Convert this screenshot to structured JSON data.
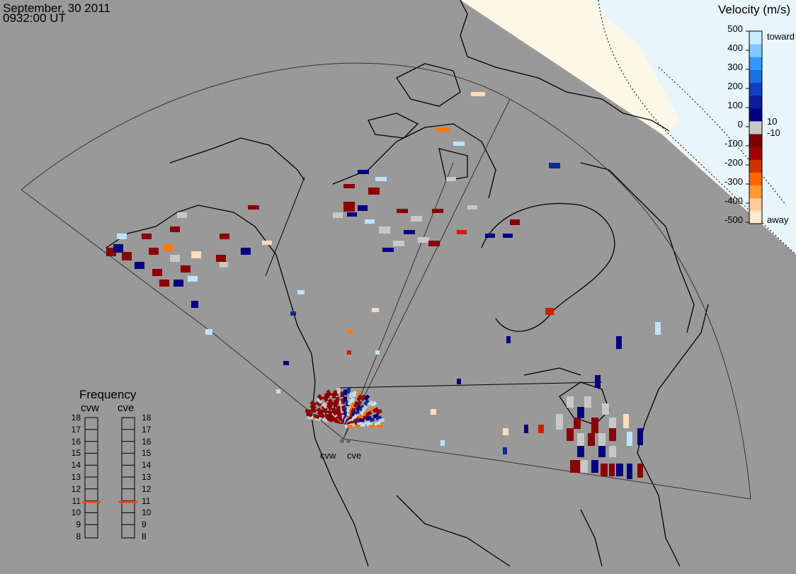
{
  "timestamp": {
    "date": "September, 30 2011",
    "time": "0932:00 UT"
  },
  "velocity_legend": {
    "title": "Velocity (m/s)",
    "ticks": [
      "500",
      "400",
      "300",
      "200",
      "100",
      "0",
      "-100",
      "-200",
      "-300",
      "-400",
      "-500"
    ],
    "inner_labels": [
      "10",
      "-10"
    ],
    "toward_label": "toward",
    "away_label": "away",
    "colors": [
      "#ffe8cc",
      "#ffcc99",
      "#ff9933",
      "#ff6600",
      "#cc3300",
      "#a00000",
      "#800000",
      "#c8c8c8",
      "#000080",
      "#0a1f99",
      "#1040c0",
      "#1a6fe0",
      "#3399ff",
      "#80c8ff",
      "#c8ecff"
    ]
  },
  "frequency_legend": {
    "title": "Frequency",
    "radars": [
      "cvw",
      "cve"
    ],
    "levels": [
      "18",
      "17",
      "16",
      "15",
      "14",
      "13",
      "12",
      "11",
      "10",
      "9",
      "8"
    ],
    "selected_frequency_mhz": {
      "cvw": 10.9,
      "cve": 10.9
    }
  },
  "radar_sites": [
    {
      "name": "cvw",
      "label": "cvw"
    },
    {
      "name": "cve",
      "label": "cve"
    }
  ],
  "colors": {
    "background": "#999999",
    "daylight_land": "#fbf8e8",
    "daylight_ocean": "#e8f6fc",
    "coastline": "#000000",
    "frequency_marker": "#e64a19"
  }
}
